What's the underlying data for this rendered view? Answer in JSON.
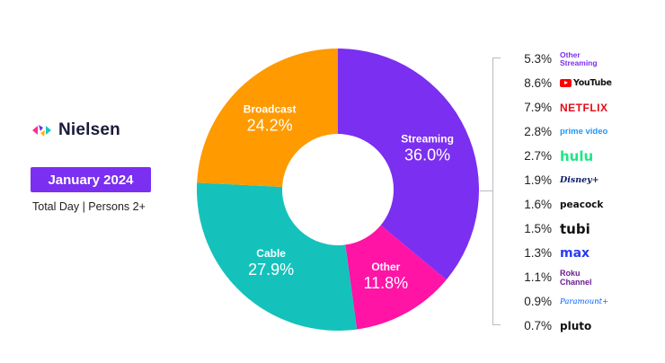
{
  "brand": {
    "name": "Nielsen",
    "colors": [
      "#6f2ff0",
      "#ff2e8a",
      "#ffb000",
      "#17c9c1"
    ]
  },
  "period": "January 2024",
  "audience": "Total Day | Persons 2+",
  "chart_data": {
    "type": "pie",
    "title": "",
    "categories": [
      "Streaming",
      "Other",
      "Cable",
      "Broadcast"
    ],
    "values": [
      36.0,
      11.8,
      27.9,
      24.2
    ],
    "value_labels": [
      "36.0%",
      "11.8%",
      "27.9%",
      "24.2%"
    ],
    "colors": [
      "#7b2ff0",
      "#ff14a6",
      "#14c2bb",
      "#ff9a00"
    ],
    "donut": true,
    "breakdown": {
      "parent": "Streaming",
      "items": [
        {
          "name": "Other Streaming",
          "value": "5.3%",
          "logo": "Other\nStreaming",
          "style": "logo-other"
        },
        {
          "name": "YouTube Main",
          "value": "8.6%",
          "logo": "YouTube",
          "style": "yt-text",
          "icon": "youtube-play-icon"
        },
        {
          "name": "Netflix",
          "value": "7.9%",
          "logo": "NETFLIX",
          "style": "netflix"
        },
        {
          "name": "Prime Video",
          "value": "2.8%",
          "logo": "prime video",
          "style": "prime"
        },
        {
          "name": "Hulu SVOD",
          "value": "2.7%",
          "logo": "hulu",
          "style": "hulu"
        },
        {
          "name": "Disney+",
          "value": "1.9%",
          "logo": "Disney+",
          "style": "disney"
        },
        {
          "name": "Peacock",
          "value": "1.6%",
          "logo": "peacock",
          "style": "peacock"
        },
        {
          "name": "Tubi",
          "value": "1.5%",
          "logo": "tubi",
          "style": "tubi"
        },
        {
          "name": "Max",
          "value": "1.3%",
          "logo": "max",
          "style": "max"
        },
        {
          "name": "Roku Channel",
          "value": "1.1%",
          "logo": "Roku\nChannel",
          "style": "roku"
        },
        {
          "name": "Paramount+",
          "value": "0.9%",
          "logo": "Paramount+",
          "style": "paramount"
        },
        {
          "name": "Pluto TV",
          "value": "0.7%",
          "logo": "pluto",
          "style": "pluto"
        }
      ]
    }
  }
}
